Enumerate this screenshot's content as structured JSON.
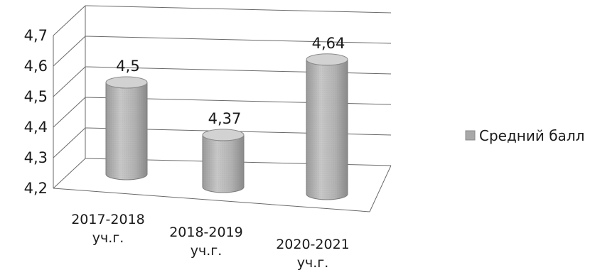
{
  "chart_data": {
    "type": "bar",
    "style": "3d-cylinder",
    "categories": [
      [
        "2017-2018",
        "уч.г."
      ],
      [
        "2018-2019",
        "уч.г."
      ],
      [
        "2020-2021",
        "уч.г."
      ]
    ],
    "series": [
      {
        "name": "Средний балл",
        "values": [
          4.5,
          4.37,
          4.64
        ],
        "color": "#b3b3b3"
      }
    ],
    "data_labels": [
      "4,5",
      "4,37",
      "4,64"
    ],
    "yticks": [
      "4,2",
      "4,3",
      "4,4",
      "4,5",
      "4,6",
      "4,7"
    ],
    "ylim": [
      4.2,
      4.7
    ],
    "title": "",
    "xlabel": "",
    "ylabel": "",
    "grid": true,
    "legend_position": "right"
  }
}
